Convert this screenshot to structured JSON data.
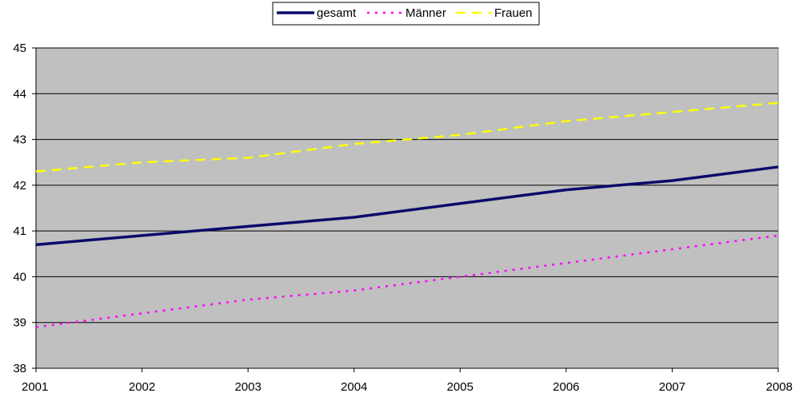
{
  "chart_data": {
    "type": "line",
    "x": [
      "2001",
      "2002",
      "2003",
      "2004",
      "2005",
      "2006",
      "2007",
      "2008"
    ],
    "series": [
      {
        "name": "gesamt",
        "values": [
          40.7,
          40.9,
          41.1,
          41.3,
          41.6,
          41.9,
          42.1,
          42.4
        ],
        "color": "#0a0a6b",
        "style": "solid"
      },
      {
        "name": "Männer",
        "values": [
          38.9,
          39.2,
          39.5,
          39.7,
          40.0,
          40.3,
          40.6,
          40.9
        ],
        "color": "#ff00ff",
        "style": "dotted"
      },
      {
        "name": "Frauen",
        "values": [
          42.3,
          42.5,
          42.6,
          42.9,
          43.1,
          43.4,
          43.6,
          43.8
        ],
        "color": "#ffff00",
        "style": "dashed"
      }
    ],
    "y_ticks": [
      "38",
      "39",
      "40",
      "41",
      "42",
      "43",
      "44",
      "45"
    ],
    "ylim": [
      38,
      45
    ],
    "grid": true,
    "legend_position": "top",
    "plot_background": "#c0c0c0",
    "title": "",
    "xlabel": "",
    "ylabel": ""
  }
}
